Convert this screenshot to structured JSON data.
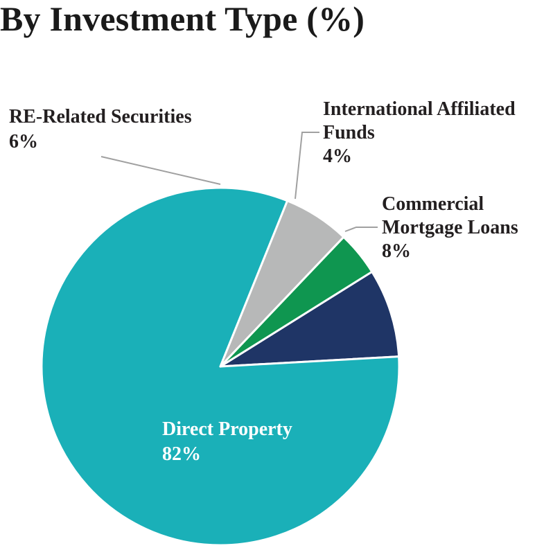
{
  "title": "By Investment Type (%)",
  "chart_data": {
    "type": "pie",
    "title": "By Investment Type (%)",
    "unit": "%",
    "slices": [
      {
        "label_lines": [
          "Commercial",
          "Mortgage Loans"
        ],
        "value_label": "8%",
        "value": 8,
        "color": "#1f3566"
      },
      {
        "label_lines": [
          "Direct Property"
        ],
        "value_label": "82%",
        "value": 82,
        "color": "#1ab0b8"
      },
      {
        "label_lines": [
          "RE-Related Securities"
        ],
        "value_label": "6%",
        "value": 6,
        "color": "#b7b8b8"
      },
      {
        "label_lines": [
          "International Affiliated",
          "Funds"
        ],
        "value_label": "4%",
        "value": 4,
        "color": "#0f9650"
      }
    ],
    "leader_color": "#a0a0a0",
    "legend": "none"
  }
}
